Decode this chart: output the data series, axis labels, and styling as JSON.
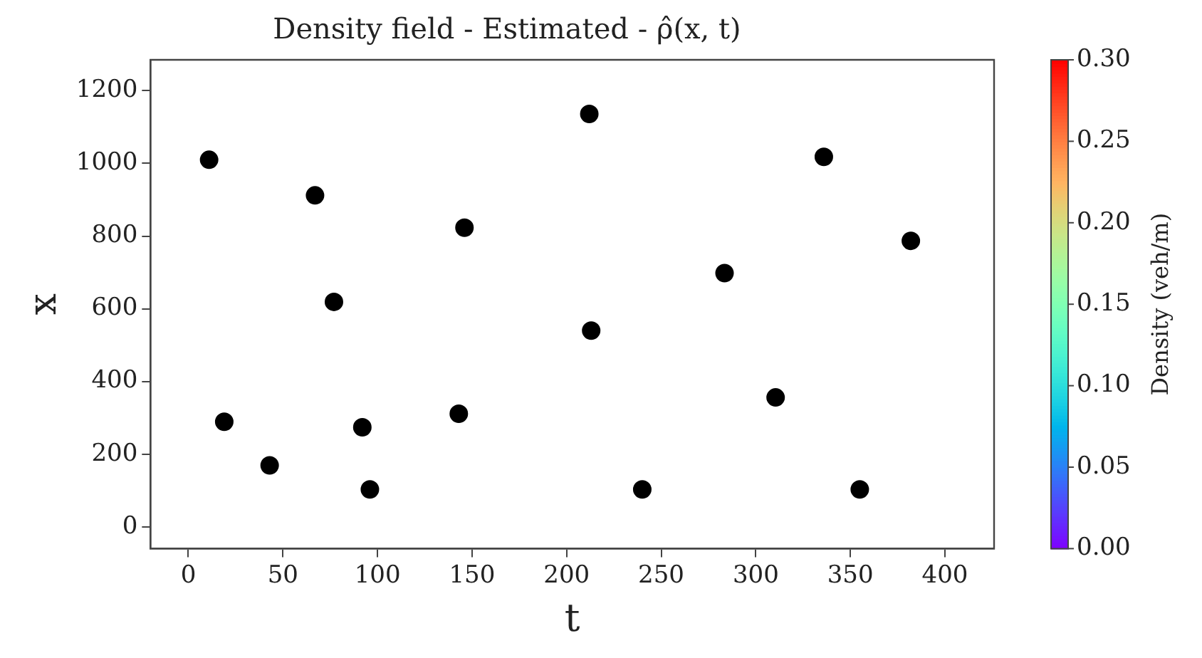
{
  "chart_data": {
    "type": "scatter",
    "title": "Density field - Estimated - ρ̂(x, t)",
    "xlabel": "t",
    "ylabel": "x",
    "clabel": "Density (veh/m)",
    "series": [
      {
        "color": "#000000",
        "x": [
          11,
          67,
          146,
          77,
          19,
          92,
          143,
          43,
          96,
          212,
          336,
          382,
          283.5,
          213,
          310.5,
          240,
          355
        ],
        "values": [
          1010,
          912,
          823,
          619,
          289,
          274,
          311,
          169,
          103,
          1136,
          1018,
          787,
          698,
          540,
          356,
          103,
          103
        ]
      }
    ],
    "marker": "circle",
    "grid": false,
    "legend": false,
    "xlim": [
      -20,
      426
    ],
    "xticks": [
      0,
      50,
      100,
      150,
      200,
      250,
      300,
      350,
      400
    ],
    "ylim": [
      -60,
      1285
    ],
    "yticks": [
      0,
      200,
      400,
      600,
      800,
      1000,
      1200
    ],
    "clim": [
      0,
      0.3
    ],
    "cticks": [
      {
        "value": 0,
        "label": "0.00"
      },
      {
        "value": 0.05,
        "label": "0.05"
      },
      {
        "value": 0.1,
        "label": "0.10"
      },
      {
        "value": 0.15,
        "label": "0.15"
      },
      {
        "value": 0.2,
        "label": "0.20"
      },
      {
        "value": 0.25,
        "label": "0.25"
      },
      {
        "value": 0.3,
        "label": "0.30"
      }
    ]
  }
}
